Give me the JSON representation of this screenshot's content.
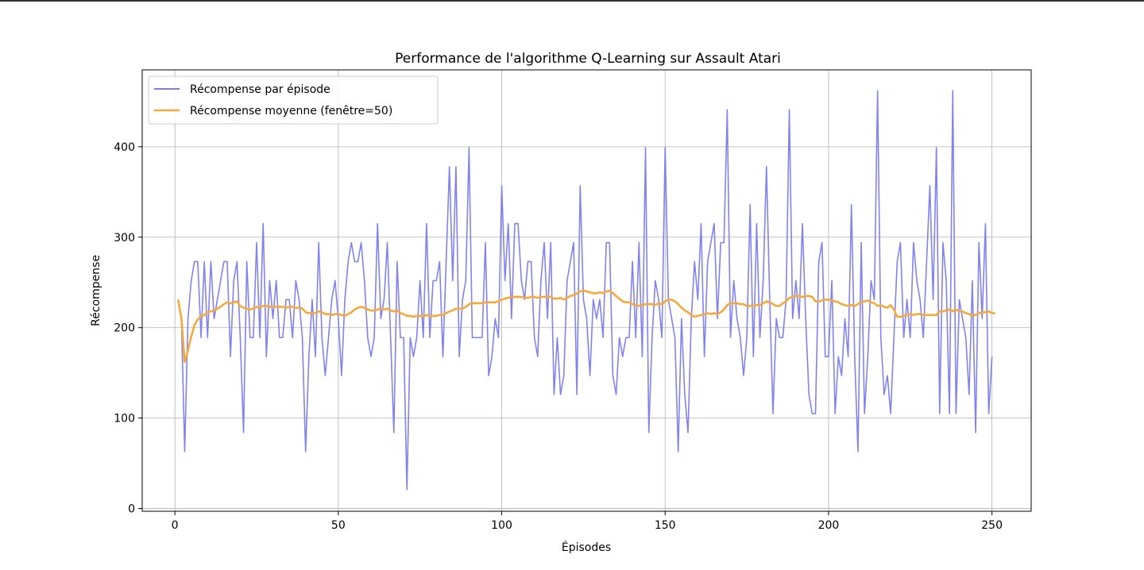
{
  "chart_data": {
    "type": "line",
    "title": "Performance de l'algorithme Q-Learning sur Assault Atari",
    "xlabel": "Épisodes",
    "ylabel": "Récompense",
    "xlim": [
      -10,
      262
    ],
    "ylim": [
      -3,
      485
    ],
    "xticks": [
      0,
      50,
      100,
      150,
      200,
      250
    ],
    "xtick_labels": [
      "0",
      "50",
      "100",
      "150",
      "200",
      "250"
    ],
    "yticks": [
      0,
      100,
      200,
      300,
      400
    ],
    "ytick_labels": [
      "0",
      "100",
      "200",
      "300",
      "400"
    ],
    "grid": true,
    "legend_position": "top-left",
    "colors": {
      "reward": "#7b7bef",
      "average": "#f5a93a",
      "grid": "#b0b0b0",
      "axes": "#000000"
    },
    "series": [
      {
        "name": "Récompense par épisode",
        "color": "#7b7bef",
        "x_start": 1,
        "values": [
          231,
          210,
          63,
          210,
          252,
          273,
          273,
          189,
          273,
          189,
          273,
          210,
          231,
          252,
          273,
          273,
          168,
          252,
          273,
          189,
          84,
          273,
          189,
          189,
          294,
          189,
          315,
          168,
          252,
          210,
          252,
          189,
          189,
          231,
          231,
          189,
          252,
          231,
          189,
          63,
          168,
          231,
          168,
          294,
          189,
          147,
          189,
          231,
          252,
          210,
          147,
          231,
          273,
          294,
          273,
          273,
          294,
          252,
          189,
          168,
          189,
          315,
          210,
          231,
          294,
          189,
          84,
          273,
          189,
          189,
          21,
          189,
          168,
          189,
          252,
          189,
          315,
          189,
          252,
          252,
          273,
          168,
          273,
          378,
          252,
          378,
          168,
          231,
          252,
          399,
          189,
          189,
          189,
          189,
          294,
          147,
          168,
          210,
          189,
          357,
          252,
          315,
          210,
          315,
          315,
          252,
          231,
          273,
          273,
          189,
          168,
          252,
          294,
          210,
          294,
          126,
          189,
          126,
          147,
          252,
          273,
          294,
          126,
          357,
          231,
          210,
          147,
          231,
          210,
          231,
          189,
          294,
          294,
          147,
          126,
          189,
          168,
          189,
          189,
          273,
          189,
          294,
          168,
          399,
          84,
          189,
          252,
          231,
          189,
          399,
          231,
          210,
          189,
          63,
          210,
          126,
          84,
          210,
          273,
          231,
          315,
          168,
          273,
          294,
          315,
          210,
          294,
          294,
          441,
          189,
          252,
          210,
          189,
          147,
          189,
          336,
          168,
          315,
          189,
          252,
          378,
          231,
          105,
          210,
          189,
          189,
          231,
          441,
          210,
          252,
          210,
          315,
          210,
          126,
          105,
          105,
          273,
          294,
          168,
          168,
          252,
          105,
          168,
          147,
          210,
          168,
          336,
          168,
          63,
          294,
          105,
          168,
          252,
          231,
          462,
          189,
          126,
          147,
          105,
          189,
          273,
          294,
          189,
          231,
          189,
          294,
          252,
          231,
          189,
          273,
          357,
          231,
          399,
          105,
          294,
          252,
          105,
          462,
          105,
          231,
          210,
          189,
          126,
          252,
          84,
          294,
          210,
          315,
          105,
          168
        ]
      },
      {
        "name": "Récompense moyenne (fenêtre=50)",
        "color": "#f5a93a",
        "x_start": 1,
        "values": [
          231,
          210,
          162,
          175,
          190,
          203,
          209,
          213,
          214,
          217,
          218,
          219,
          221,
          223,
          226,
          228,
          227,
          228,
          229,
          224,
          222,
          221,
          220,
          221,
          223,
          222,
          224,
          224,
          223,
          223,
          223,
          223,
          223,
          222,
          223,
          223,
          222,
          222,
          221,
          217,
          216,
          216,
          216,
          218,
          217,
          215,
          215,
          214,
          215,
          215,
          214,
          213,
          215,
          217,
          220,
          222,
          223,
          222,
          220,
          219,
          219,
          220,
          221,
          220,
          221,
          219,
          218,
          219,
          216,
          215,
          213,
          213,
          212,
          213,
          213,
          212,
          214,
          213,
          213,
          213,
          214,
          214,
          216,
          218,
          219,
          221,
          221,
          221,
          223,
          226,
          227,
          227,
          227,
          227,
          228,
          228,
          228,
          228,
          229,
          231,
          232,
          233,
          234,
          234,
          234,
          234,
          233,
          233,
          234,
          234,
          233,
          234,
          234,
          234,
          234,
          232,
          232,
          233,
          231,
          233,
          235,
          236,
          238,
          240,
          241,
          240,
          239,
          238,
          238,
          239,
          238,
          240,
          241,
          238,
          235,
          232,
          229,
          228,
          228,
          226,
          225,
          224,
          225,
          226,
          226,
          226,
          225,
          227,
          226,
          229,
          231,
          231,
          229,
          226,
          222,
          219,
          217,
          214,
          212,
          213,
          214,
          215,
          216,
          215,
          216,
          215,
          217,
          220,
          225,
          227,
          227,
          227,
          226,
          226,
          224,
          224,
          224,
          225,
          225,
          227,
          229,
          228,
          226,
          224,
          224,
          227,
          229,
          233,
          234,
          235,
          235,
          234,
          235,
          235,
          234,
          229,
          229,
          230,
          231,
          231,
          230,
          229,
          228,
          226,
          225,
          224,
          225,
          224,
          226,
          228,
          229,
          230,
          228,
          227,
          224,
          225,
          223,
          222,
          225,
          220,
          212,
          212,
          213,
          214,
          215,
          214,
          215,
          215,
          214,
          214,
          214,
          214,
          214,
          218,
          218,
          219,
          220,
          218,
          220,
          218,
          218,
          216,
          215,
          213,
          214,
          216,
          217,
          217,
          218,
          216,
          216
        ]
      }
    ]
  }
}
